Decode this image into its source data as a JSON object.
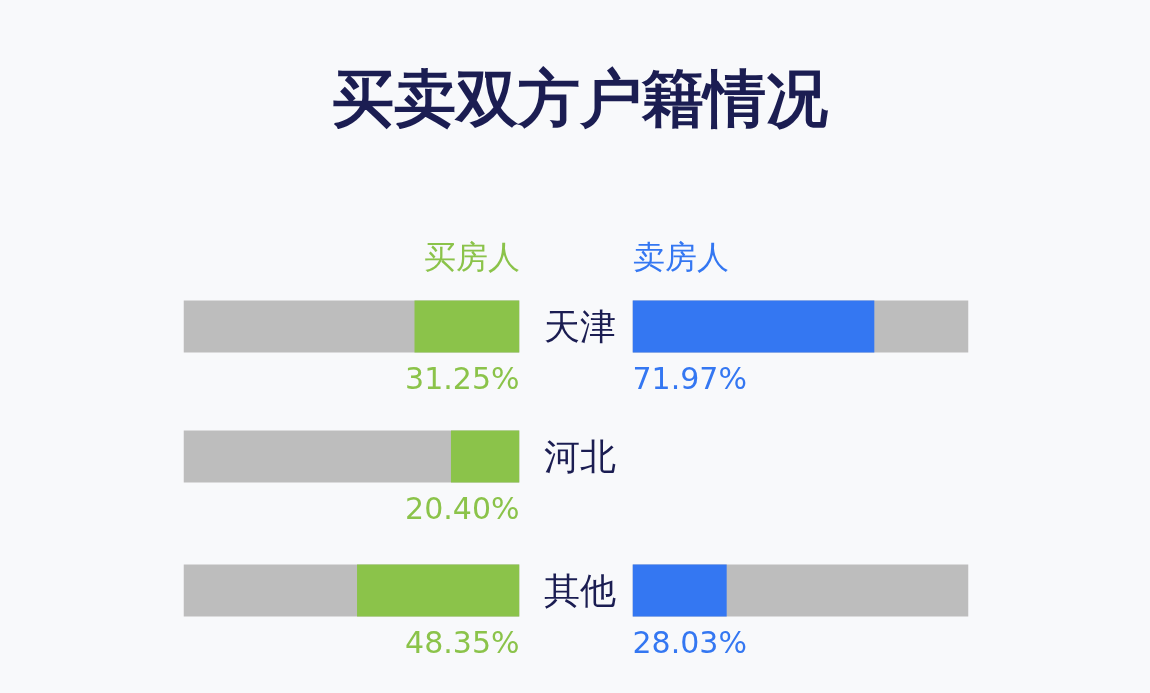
{
  "chart_data": [
    {
      "type": "bar",
      "title": "买卖双方户籍情况",
      "orientation": "horizontal",
      "categories": [
        "天津",
        "河北",
        "其他"
      ],
      "xlim": [
        100,
        0
      ],
      "tick_labels": "y",
      "grid": false,
      "bands": [
        {
          "axis": "x",
          "from": 0,
          "to": 100,
          "color": "#bdbdbd"
        }
      ],
      "series": [
        {
          "name": "买房人",
          "color": "#8bc34a",
          "values": [
            31.25,
            20.4,
            48.35
          ],
          "value_labels": [
            "31.25%",
            "20.40%",
            "48.35%"
          ]
        }
      ]
    },
    {
      "type": "bar",
      "orientation": "horizontal",
      "categories": [
        null,
        null,
        null
      ],
      "xlim": [
        0,
        100
      ],
      "tick_labels": false,
      "grid": false,
      "bands": [
        {
          "axis": "x",
          "from": 0,
          "to": 100,
          "color": "#bdbdbd"
        }
      ],
      "series": [
        {
          "name": "卖房人",
          "color": "#3477f2",
          "values": [
            71.97,
            null,
            28.03
          ],
          "value_labels": [
            "71.97%",
            null,
            "28.03%"
          ]
        }
      ]
    }
  ]
}
